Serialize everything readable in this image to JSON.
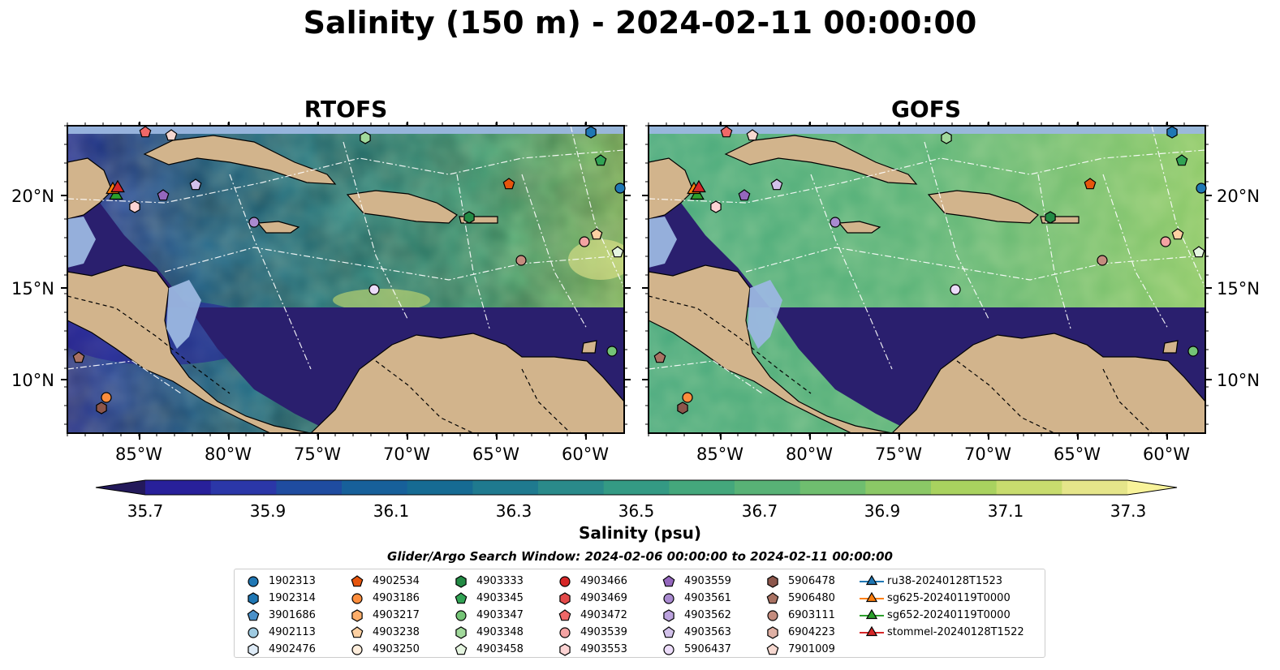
{
  "title": "Salinity (150 m) - 2024-02-11 00:00:00",
  "panels": [
    {
      "title": "RTOFS"
    },
    {
      "title": "GOFS"
    }
  ],
  "lon_ticks": [
    "85°W",
    "80°W",
    "75°W",
    "70°W",
    "65°W",
    "60°W"
  ],
  "lat_ticks": [
    "20°N",
    "15°N",
    "10°N"
  ],
  "colorbar": {
    "label": "Salinity (psu)",
    "ticks": [
      "35.7",
      "35.9",
      "36.1",
      "36.3",
      "36.5",
      "36.7",
      "36.9",
      "37.1",
      "37.3"
    ],
    "range": [
      35.7,
      37.3
    ],
    "colors": [
      "#23195a",
      "#28209a",
      "#2b37a8",
      "#1f4ca0",
      "#17609a",
      "#166b93",
      "#1f7a8f",
      "#2a8a8a",
      "#349a84",
      "#44a77c",
      "#58b276",
      "#6fbe6f",
      "#8bc866",
      "#a9d25f",
      "#c8dc6e",
      "#e5e58a",
      "#f8f39a"
    ]
  },
  "search_window": "Glider/Argo Search Window: 2024-02-06 00:00:00 to 2024-02-11 00:00:00",
  "colors": {
    "land": "#d2b48c",
    "shelf": "#9bb7e0",
    "deep": "#2a1f6e"
  },
  "legend": {
    "columns": [
      [
        {
          "label": "1902313",
          "marker": "circle",
          "color": "#1f77b4"
        },
        {
          "label": "1902314",
          "marker": "hexagon",
          "color": "#1f77b4"
        },
        {
          "label": "3901686",
          "marker": "pentagon",
          "color": "#4a90c8"
        },
        {
          "label": "4902113",
          "marker": "circle",
          "color": "#9ecae1"
        },
        {
          "label": "4902476",
          "marker": "hexagon",
          "color": "#deebf7"
        }
      ],
      [
        {
          "label": "4902534",
          "marker": "pentagon",
          "color": "#e6550d"
        },
        {
          "label": "4903186",
          "marker": "circle",
          "color": "#fd8d3c"
        },
        {
          "label": "4903217",
          "marker": "hexagon",
          "color": "#fdae6b"
        },
        {
          "label": "4903238",
          "marker": "pentagon",
          "color": "#fdd0a2"
        },
        {
          "label": "4903250",
          "marker": "circle",
          "color": "#feeddb"
        }
      ],
      [
        {
          "label": "4903333",
          "marker": "hexagon",
          "color": "#238b45"
        },
        {
          "label": "4903345",
          "marker": "pentagon",
          "color": "#31a354"
        },
        {
          "label": "4903347",
          "marker": "circle",
          "color": "#74c476"
        },
        {
          "label": "4903348",
          "marker": "hexagon",
          "color": "#a1d99b"
        },
        {
          "label": "4903458",
          "marker": "pentagon",
          "color": "#e5f5e0"
        }
      ],
      [
        {
          "label": "4903466",
          "marker": "circle",
          "color": "#d62728"
        },
        {
          "label": "4903469",
          "marker": "hexagon",
          "color": "#e34a4a"
        },
        {
          "label": "4903472",
          "marker": "pentagon",
          "color": "#f06868"
        },
        {
          "label": "4903539",
          "marker": "circle",
          "color": "#f4a3a3"
        },
        {
          "label": "4903553",
          "marker": "hexagon",
          "color": "#fcd3d3"
        }
      ],
      [
        {
          "label": "4903559",
          "marker": "pentagon",
          "color": "#9467bd"
        },
        {
          "label": "4903561",
          "marker": "circle",
          "color": "#a98ad0"
        },
        {
          "label": "4903562",
          "marker": "hexagon",
          "color": "#bca3de"
        },
        {
          "label": "4903563",
          "marker": "pentagon",
          "color": "#d2c1ea"
        },
        {
          "label": "5906437",
          "marker": "circle",
          "color": "#ecdcfa"
        }
      ],
      [
        {
          "label": "5906478",
          "marker": "hexagon",
          "color": "#8c564b"
        },
        {
          "label": "5906480",
          "marker": "pentagon",
          "color": "#a97263"
        },
        {
          "label": "6903111",
          "marker": "circle",
          "color": "#c48c7e"
        },
        {
          "label": "6904223",
          "marker": "hexagon",
          "color": "#dfb0a4"
        },
        {
          "label": "7901009",
          "marker": "pentagon",
          "color": "#f6d8d0"
        }
      ],
      [
        {
          "label": "ru38-20240128T1523",
          "marker": "triangle",
          "color": "#1f77b4"
        },
        {
          "label": "sg625-20240119T0000",
          "marker": "triangle",
          "color": "#ff7f0e"
        },
        {
          "label": "sg652-20240119T0000",
          "marker": "triangle",
          "color": "#2ca02c"
        },
        {
          "label": "stommel-20240128T1522",
          "marker": "triangle",
          "color": "#d62728"
        }
      ]
    ]
  }
}
